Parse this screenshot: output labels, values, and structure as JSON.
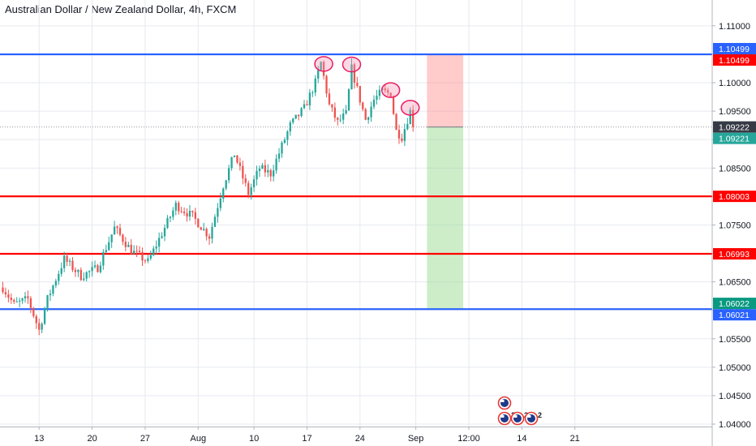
{
  "header": {
    "title": "Australian Dollar / New Zealand Dollar, 4h, FXCM"
  },
  "chart_data": {
    "type": "candlestick",
    "symbol": "AUDNZD",
    "interval": "4h",
    "ylim": [
      1.0395,
      1.1155
    ],
    "y_ticks": [
      {
        "value": 1.11,
        "label": "1.11000"
      },
      {
        "value": 1.105,
        "label": "1.10500"
      },
      {
        "value": 1.1,
        "label": "1.10000"
      },
      {
        "value": 1.095,
        "label": "1.09500"
      },
      {
        "value": 1.09,
        "label": "1.09000"
      },
      {
        "value": 1.085,
        "label": "1.08500"
      },
      {
        "value": 1.08,
        "label": "1.08000"
      },
      {
        "value": 1.075,
        "label": "1.07500"
      },
      {
        "value": 1.07,
        "label": "1.07000"
      },
      {
        "value": 1.065,
        "label": "1.06500"
      },
      {
        "value": 1.06,
        "label": "1.06000"
      },
      {
        "value": 1.055,
        "label": "1.05500"
      },
      {
        "value": 1.05,
        "label": "1.05000"
      },
      {
        "value": 1.045,
        "label": "1.04500"
      },
      {
        "value": 1.04,
        "label": "1.04000"
      }
    ],
    "x_ticks": [
      {
        "index": 13,
        "label": "13"
      },
      {
        "index": 32,
        "label": "20"
      },
      {
        "index": 51,
        "label": "27"
      },
      {
        "index": 70,
        "label": "Aug"
      },
      {
        "index": 90,
        "label": "10"
      },
      {
        "index": 109,
        "label": "17"
      },
      {
        "index": 128,
        "label": "24"
      },
      {
        "index": 148,
        "label": "Sep"
      },
      {
        "index": 167,
        "label": "12:00"
      },
      {
        "index": 186,
        "label": "14"
      },
      {
        "index": 205,
        "label": "21"
      }
    ],
    "bars_visible": 148,
    "anchors": [
      [
        0,
        1.064
      ],
      [
        4,
        1.061
      ],
      [
        9,
        1.062
      ],
      [
        13,
        1.0565
      ],
      [
        16,
        1.062
      ],
      [
        22,
        1.069
      ],
      [
        28,
        1.066
      ],
      [
        34,
        1.0675
      ],
      [
        40,
        1.0745
      ],
      [
        46,
        1.0705
      ],
      [
        52,
        1.0685
      ],
      [
        56,
        1.0725
      ],
      [
        62,
        1.0785
      ],
      [
        68,
        1.0765
      ],
      [
        74,
        1.073
      ],
      [
        79,
        1.082
      ],
      [
        83,
        1.0875
      ],
      [
        88,
        1.0805
      ],
      [
        92,
        1.085
      ],
      [
        96,
        1.084
      ],
      [
        103,
        1.0925
      ],
      [
        108,
        1.0955
      ],
      [
        112,
        1.1
      ],
      [
        114,
        1.1035
      ],
      [
        117,
        1.096
      ],
      [
        120,
        1.093
      ],
      [
        123,
        1.0945
      ],
      [
        125,
        1.1025
      ],
      [
        128,
        1.097
      ],
      [
        130,
        1.0935
      ],
      [
        133,
        1.097
      ],
      [
        136,
        1.0985
      ],
      [
        139,
        1.098
      ],
      [
        141,
        1.0915
      ],
      [
        143,
        1.0905
      ],
      [
        145,
        1.0935
      ],
      [
        146,
        1.095
      ],
      [
        147,
        1.0922
      ]
    ],
    "ohlc_estimated": true,
    "last_price": 1.09222,
    "levels": [
      {
        "price": 1.10499,
        "label": "1.10499",
        "color": "#2962ff",
        "tag_color": "#2962ff"
      },
      {
        "price": 1.08003,
        "label": "1.08003",
        "color": "#ff0000",
        "tag_color": "#ff0000"
      },
      {
        "price": 1.06993,
        "label": "1.06993",
        "color": "#ff0000",
        "tag_color": "#ff0000"
      },
      {
        "price": 1.06021,
        "label": "1.06021",
        "color": "#2962ff",
        "tag_color": "#2962ff"
      }
    ],
    "position": {
      "type": "short",
      "entry": 1.09222,
      "stop": 1.10499,
      "target": 1.06022,
      "start_index": 152,
      "end_index": 165,
      "tags": [
        {
          "price": 1.10499,
          "label": "1.10499",
          "color": "#ff0000"
        },
        {
          "price": 1.09222,
          "label": "1.09222",
          "color": "#363a45"
        },
        {
          "price": 1.09221,
          "label": "1.09221",
          "color": "#26a69a"
        },
        {
          "price": 1.06022,
          "label": "1.06022",
          "color": "#089981"
        }
      ]
    },
    "highlight_ellipses": [
      {
        "index": 115,
        "price": 1.1033
      },
      {
        "index": 125,
        "price": 1.1032
      },
      {
        "index": 139,
        "price": 1.0987
      },
      {
        "index": 146,
        "price": 1.0956
      }
    ],
    "colors": {
      "up": "#26a69a",
      "down": "#ef5350",
      "grid": "#e6e9ef",
      "stop_zone": "rgba(255,140,140,0.45)",
      "target_zone": "rgba(130,210,120,0.40)"
    },
    "event_markers": {
      "count_top": 1,
      "count_bottom": 3,
      "badge": "2"
    }
  }
}
